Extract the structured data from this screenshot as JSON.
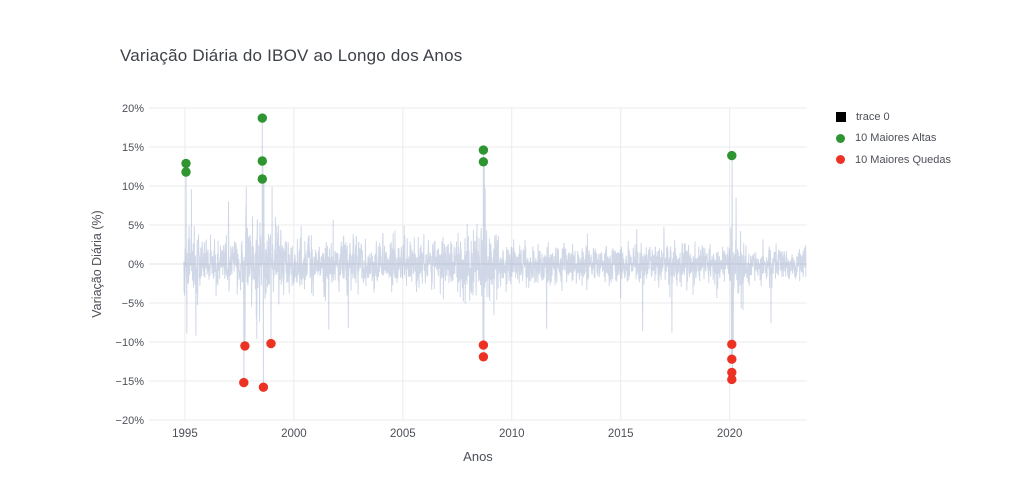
{
  "title": "Variação Diária do IBOV ao Longo dos Anos",
  "legend": {
    "items": [
      {
        "label": "trace 0",
        "symbol": "square",
        "color": "#000000"
      },
      {
        "label": "10 Maiores Altas",
        "symbol": "circle",
        "color": "#2e9531"
      },
      {
        "label": "10 Maiores Quedas",
        "symbol": "circle",
        "color": "#ec3323"
      }
    ]
  },
  "chart_data": {
    "type": "line+scatter",
    "title": "Variação Diária do IBOV ao Longo dos Anos",
    "xlabel": "Anos",
    "ylabel": "Variação Diária (%)",
    "grid": true,
    "legend_position": "right",
    "xlim": [
      1993.35,
      2023.55
    ],
    "ylim": [
      -20,
      20
    ],
    "x_ticks": [
      {
        "v": 1995,
        "label": "1995"
      },
      {
        "v": 2000,
        "label": "2000"
      },
      {
        "v": 2005,
        "label": "2005"
      },
      {
        "v": 2010,
        "label": "2010"
      },
      {
        "v": 2015,
        "label": "2015"
      },
      {
        "v": 2020,
        "label": "2020"
      }
    ],
    "y_ticks": [
      {
        "v": 20,
        "label": "20%"
      },
      {
        "v": 15,
        "label": "15%"
      },
      {
        "v": 10,
        "label": "10%"
      },
      {
        "v": 5,
        "label": "5%"
      },
      {
        "v": 0,
        "label": "0%"
      },
      {
        "v": -5,
        "label": "−5%"
      },
      {
        "v": -10,
        "label": "−10%"
      },
      {
        "v": -15,
        "label": "−15%"
      },
      {
        "v": -20,
        "label": "−20%"
      }
    ],
    "series": [
      {
        "name": "trace 0",
        "type": "line",
        "color": "#8fa2c6",
        "opacity": 0.42,
        "description": "IBOV daily % variation 1995–2023; dense noise band ±5% with spikes in 1995, 1997–99, 2008 and 2020 crises; synthesized from volatility_profile and anchor extremes",
        "x_start": 1994.95,
        "x_end": 2023.5,
        "n_points": 2800,
        "seed": 7,
        "noise_clip": [
          -10.0,
          10.4
        ],
        "volatility_profile": [
          [
            1994.95,
            1995.7,
            2.4
          ],
          [
            1995.7,
            1997.55,
            1.5
          ],
          [
            1997.55,
            1999.4,
            2.7
          ],
          [
            1999.4,
            2003.2,
            1.75
          ],
          [
            2003.2,
            2007.5,
            1.55
          ],
          [
            2007.5,
            2009.4,
            2.45
          ],
          [
            2009.4,
            2016.2,
            1.3
          ],
          [
            2016.2,
            2020.0,
            1.25
          ],
          [
            2020.0,
            2020.65,
            2.7
          ],
          [
            2020.65,
            2023.5,
            1.1
          ]
        ],
        "anchors": [
          [
            1995.05,
            12.9
          ],
          [
            1995.08,
            -8.9
          ],
          [
            1995.3,
            9.6
          ],
          [
            1995.5,
            -9.2
          ],
          [
            1997.0,
            8.0
          ],
          [
            1997.7,
            -15.2
          ],
          [
            1997.75,
            -10.5
          ],
          [
            1997.82,
            9.9
          ],
          [
            1998.3,
            -9.6
          ],
          [
            1998.55,
            18.7
          ],
          [
            1998.57,
            13.2
          ],
          [
            1998.6,
            -15.8
          ],
          [
            1998.62,
            10.9
          ],
          [
            1998.95,
            -10.2
          ],
          [
            1999.0,
            9.9
          ],
          [
            2001.6,
            -8.4
          ],
          [
            2002.5,
            -8.2
          ],
          [
            2008.68,
            -10.4
          ],
          [
            2008.7,
            14.6
          ],
          [
            2008.72,
            -11.9
          ],
          [
            2008.74,
            13.1
          ],
          [
            2008.78,
            9.7
          ],
          [
            2011.6,
            -8.3
          ],
          [
            2016.0,
            -8.6
          ],
          [
            2017.35,
            -8.8
          ],
          [
            2020.08,
            -12.2
          ],
          [
            2020.1,
            -14.8
          ],
          [
            2020.11,
            13.9
          ],
          [
            2020.13,
            -13.9
          ],
          [
            2020.16,
            -10.3
          ],
          [
            2020.3,
            8.5
          ],
          [
            2021.9,
            -7.6
          ]
        ]
      },
      {
        "name": "10 Maiores Altas",
        "type": "scatter",
        "color": "#2e9531",
        "marker_radius": 4.7,
        "points": [
          [
            1995.05,
            12.9
          ],
          [
            1995.05,
            11.8
          ],
          [
            1998.55,
            18.7
          ],
          [
            1998.55,
            13.2
          ],
          [
            1998.55,
            10.9
          ],
          [
            2008.7,
            14.6
          ],
          [
            2008.7,
            13.1
          ],
          [
            2020.1,
            13.9
          ]
        ]
      },
      {
        "name": "10 Maiores Quedas",
        "type": "scatter",
        "color": "#ec3323",
        "marker_radius": 4.7,
        "points": [
          [
            1997.75,
            -10.5
          ],
          [
            1997.7,
            -15.2
          ],
          [
            1998.6,
            -15.8
          ],
          [
            1998.95,
            -10.2
          ],
          [
            2008.7,
            -10.4
          ],
          [
            2008.7,
            -11.9
          ],
          [
            2020.1,
            -10.3
          ],
          [
            2020.1,
            -12.2
          ],
          [
            2020.1,
            -13.9
          ],
          [
            2020.1,
            -14.8
          ]
        ]
      }
    ],
    "style": {
      "grid_color": "#ebebeb",
      "zero_line_color": "#e3e3e3",
      "tick_color": "#4c5057",
      "background": "#ffffff"
    }
  }
}
